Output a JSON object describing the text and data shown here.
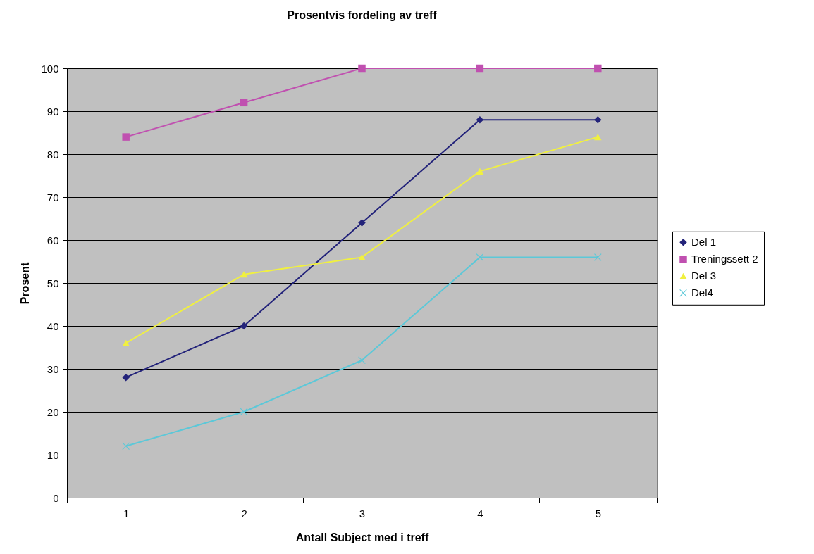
{
  "chart_data": {
    "type": "line",
    "title": "Prosentvis fordeling av treff",
    "xlabel": "Antall Subject med i treff",
    "ylabel": "Prosent",
    "categories": [
      "1",
      "2",
      "3",
      "4",
      "5"
    ],
    "series": [
      {
        "name": "Del 1",
        "color": "#23237a",
        "marker": "diamond",
        "values": [
          28,
          40,
          64,
          88,
          88
        ]
      },
      {
        "name": "Treningssett 2",
        "color": "#c050b0",
        "marker": "square",
        "values": [
          84,
          92,
          100,
          100,
          100
        ]
      },
      {
        "name": "Del 3",
        "color": "#f0f040",
        "marker": "triangle",
        "values": [
          36,
          52,
          56,
          76,
          84
        ]
      },
      {
        "name": "Del4",
        "color": "#5cc8d8",
        "marker": "cross",
        "values": [
          12,
          20,
          32,
          56,
          56
        ]
      }
    ],
    "ylim": [
      0,
      100
    ],
    "yticks": [
      0,
      10,
      20,
      30,
      40,
      50,
      60,
      70,
      80,
      90,
      100
    ],
    "grid": "y",
    "legend": "right",
    "line_style": "solid"
  }
}
